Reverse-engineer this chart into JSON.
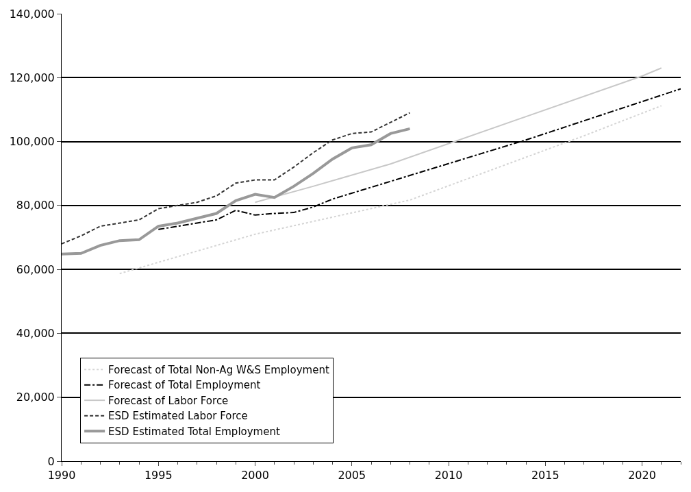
{
  "chart_data": {
    "type": "line",
    "xlim": [
      1990,
      2022
    ],
    "xticks": [
      1990,
      1995,
      2000,
      2005,
      2010,
      2015,
      2020
    ],
    "ylim": [
      0,
      140000
    ],
    "yticks": [
      {
        "value": 0,
        "label": "0"
      },
      {
        "value": 20000,
        "label": "20,000"
      },
      {
        "value": 40000,
        "label": "40,000"
      },
      {
        "value": 60000,
        "label": "60,000"
      },
      {
        "value": 80000,
        "label": "80,000"
      },
      {
        "value": 100000,
        "label": "100,000"
      },
      {
        "value": 120000,
        "label": "120,000"
      },
      {
        "value": 140000,
        "label": "140,000"
      }
    ],
    "grid": "y",
    "legend": "bottom",
    "series": [
      {
        "name": "Forecast of Total Non-Ag W&S Employment",
        "color": "#d4d4d4",
        "line_style": "dotted",
        "x": [
          1993,
          2000,
          2008,
          2017,
          2021
        ],
        "values": [
          58700,
          71000,
          81700,
          101800,
          111200
        ]
      },
      {
        "name": "Forecast of Total Employment",
        "color": "#000000",
        "line_style": "dashdot",
        "x": [
          1995,
          1996,
          1997,
          1998,
          1999,
          2000,
          2001,
          2002,
          2003,
          2004,
          2014,
          2022
        ],
        "values": [
          72500,
          73500,
          74500,
          75500,
          78500,
          77000,
          77500,
          77800,
          79500,
          82000,
          100500,
          116500
        ]
      },
      {
        "name": "Forecast of Labor Force",
        "color": "#c8c8c8",
        "line_style": "solid",
        "x": [
          2000,
          2003,
          2007,
          2020,
          2021
        ],
        "values": [
          81000,
          86000,
          93000,
          120500,
          123000
        ]
      },
      {
        "name": "ESD Estimated Labor Force",
        "color": "#333333",
        "line_style": "dashed",
        "x": [
          1990,
          1991,
          1992,
          1993,
          1994,
          1995,
          1996,
          1997,
          1998,
          1999,
          2000,
          2001,
          2002,
          2003,
          2004,
          2005,
          2006,
          2007,
          2008
        ],
        "values": [
          68000,
          70500,
          73500,
          74500,
          75500,
          79000,
          80000,
          81000,
          83000,
          87000,
          88000,
          88000,
          92000,
          96500,
          100500,
          102500,
          103000,
          106000,
          109000
        ]
      },
      {
        "name": "ESD Estimated Total Employment",
        "color": "#999999",
        "line_style": "solid",
        "x": [
          1990,
          1991,
          1992,
          1993,
          1994,
          1995,
          1996,
          1997,
          1998,
          1999,
          2000,
          2001,
          2002,
          2003,
          2004,
          2005,
          2006,
          2007,
          2008
        ],
        "values": [
          64800,
          65000,
          67500,
          69000,
          69300,
          73500,
          74500,
          76000,
          77500,
          81500,
          83500,
          82500,
          86000,
          90000,
          94500,
          98000,
          99000,
          102500,
          104000
        ]
      }
    ]
  }
}
